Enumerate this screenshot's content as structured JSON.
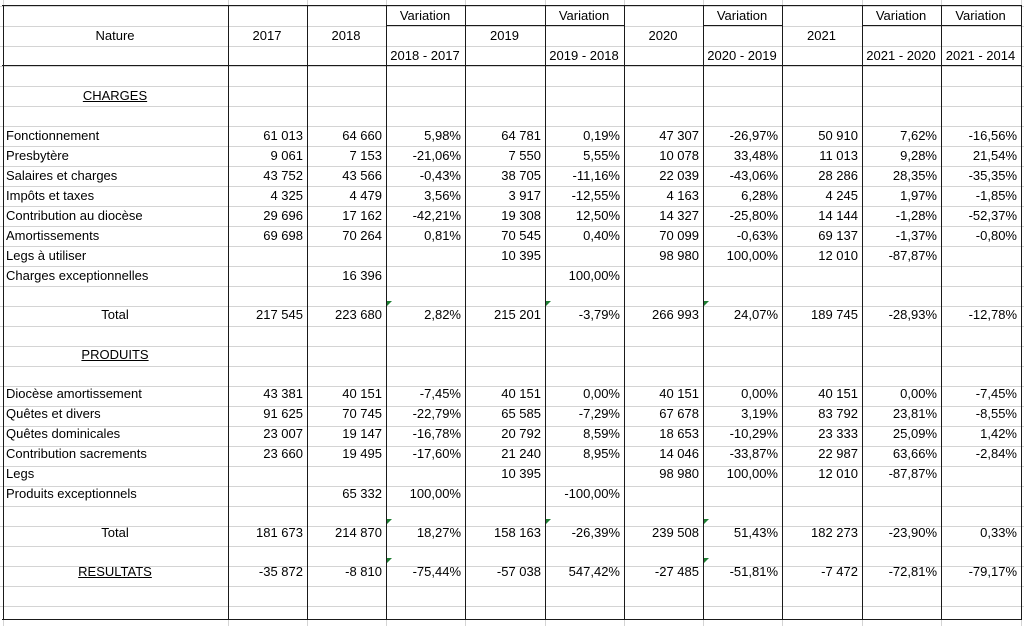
{
  "header": {
    "nature": "Nature",
    "variation": "Variation",
    "years": [
      "2017",
      "2018",
      "2019",
      "2020",
      "2021"
    ],
    "ranges": [
      "2018 - 2017",
      "2019 - 2018",
      "2020 - 2019",
      "2021 - 2020",
      "2021 - 2014"
    ]
  },
  "charges": {
    "title": "CHARGES",
    "rows": [
      {
        "label": "Fonctionnement",
        "v": [
          "61 013",
          "64 660",
          "5,98%",
          "64 781",
          "0,19%",
          "47 307",
          "-26,97%",
          "50 910",
          "7,62%",
          "-16,56%"
        ]
      },
      {
        "label": "Presbytère",
        "v": [
          "9 061",
          "7 153",
          "-21,06%",
          "7 550",
          "5,55%",
          "10 078",
          "33,48%",
          "11 013",
          "9,28%",
          "21,54%"
        ]
      },
      {
        "label": "Salaires et charges",
        "v": [
          "43 752",
          "43 566",
          "-0,43%",
          "38 705",
          "-11,16%",
          "22 039",
          "-43,06%",
          "28 286",
          "28,35%",
          "-35,35%"
        ]
      },
      {
        "label": "Impôts et taxes",
        "v": [
          "4 325",
          "4 479",
          "3,56%",
          "3 917",
          "-12,55%",
          "4 163",
          "6,28%",
          "4 245",
          "1,97%",
          "-1,85%"
        ]
      },
      {
        "label": "Contribution au diocèse",
        "v": [
          "29 696",
          "17 162",
          "-42,21%",
          "19 308",
          "12,50%",
          "14 327",
          "-25,80%",
          "14 144",
          "-1,28%",
          "-52,37%"
        ]
      },
      {
        "label": "Amortissements",
        "v": [
          "69 698",
          "70 264",
          "0,81%",
          "70 545",
          "0,40%",
          "70 099",
          "-0,63%",
          "69 137",
          "-1,37%",
          "-0,80%"
        ]
      },
      {
        "label": "Legs à utiliser",
        "v": [
          "",
          "",
          "",
          "10 395",
          "",
          "98 980",
          "100,00%",
          "12 010",
          "-87,87%",
          ""
        ]
      },
      {
        "label": "Charges exceptionnelles",
        "v": [
          "",
          "16 396",
          "",
          "",
          "100,00%",
          "",
          "",
          "",
          "",
          ""
        ]
      }
    ],
    "total": {
      "label": "Total",
      "v": [
        "217 545",
        "223 680",
        "2,82%",
        "215 201",
        "-3,79%",
        "266 993",
        "24,07%",
        "189 745",
        "-28,93%",
        "-12,78%"
      ]
    }
  },
  "produits": {
    "title": "PRODUITS",
    "rows": [
      {
        "label": "Diocèse amortissement",
        "v": [
          "43 381",
          "40 151",
          "-7,45%",
          "40 151",
          "0,00%",
          "40 151",
          "0,00%",
          "40 151",
          "0,00%",
          "-7,45%"
        ]
      },
      {
        "label": "Quêtes et divers",
        "v": [
          "91 625",
          "70 745",
          "-22,79%",
          "65 585",
          "-7,29%",
          "67 678",
          "3,19%",
          "83 792",
          "23,81%",
          "-8,55%"
        ]
      },
      {
        "label": "Quêtes dominicales",
        "v": [
          "23 007",
          "19 147",
          "-16,78%",
          "20 792",
          "8,59%",
          "18 653",
          "-10,29%",
          "23 333",
          "25,09%",
          "1,42%"
        ]
      },
      {
        "label": "Contribution sacrements",
        "v": [
          "23 660",
          "19 495",
          "-17,60%",
          "21 240",
          "8,95%",
          "14 046",
          "-33,87%",
          "22 987",
          "63,66%",
          "-2,84%"
        ]
      },
      {
        "label": "Legs",
        "v": [
          "",
          "",
          "",
          "10 395",
          "",
          "98 980",
          "100,00%",
          "12 010",
          "-87,87%",
          ""
        ]
      },
      {
        "label": "Produits exceptionnels",
        "v": [
          "",
          "65 332",
          "100,00%",
          "",
          "-100,00%",
          "",
          "",
          "",
          "",
          ""
        ]
      }
    ],
    "total": {
      "label": "Total",
      "v": [
        "181 673",
        "214 870",
        "18,27%",
        "158 163",
        "-26,39%",
        "239 508",
        "51,43%",
        "182 273",
        "-23,90%",
        "0,33%"
      ]
    }
  },
  "resultats": {
    "label": "RESULTATS",
    "v": [
      "-35 872",
      "-8 810",
      "-75,44%",
      "-57 038",
      "547,42%",
      "-27 485",
      "-51,81%",
      "-7 472",
      "-72,81%",
      "-79,17%"
    ]
  },
  "colors": {
    "grid": "#d4d4d4",
    "border": "#1a1a1a",
    "error_indicator": "#1e7d32"
  }
}
